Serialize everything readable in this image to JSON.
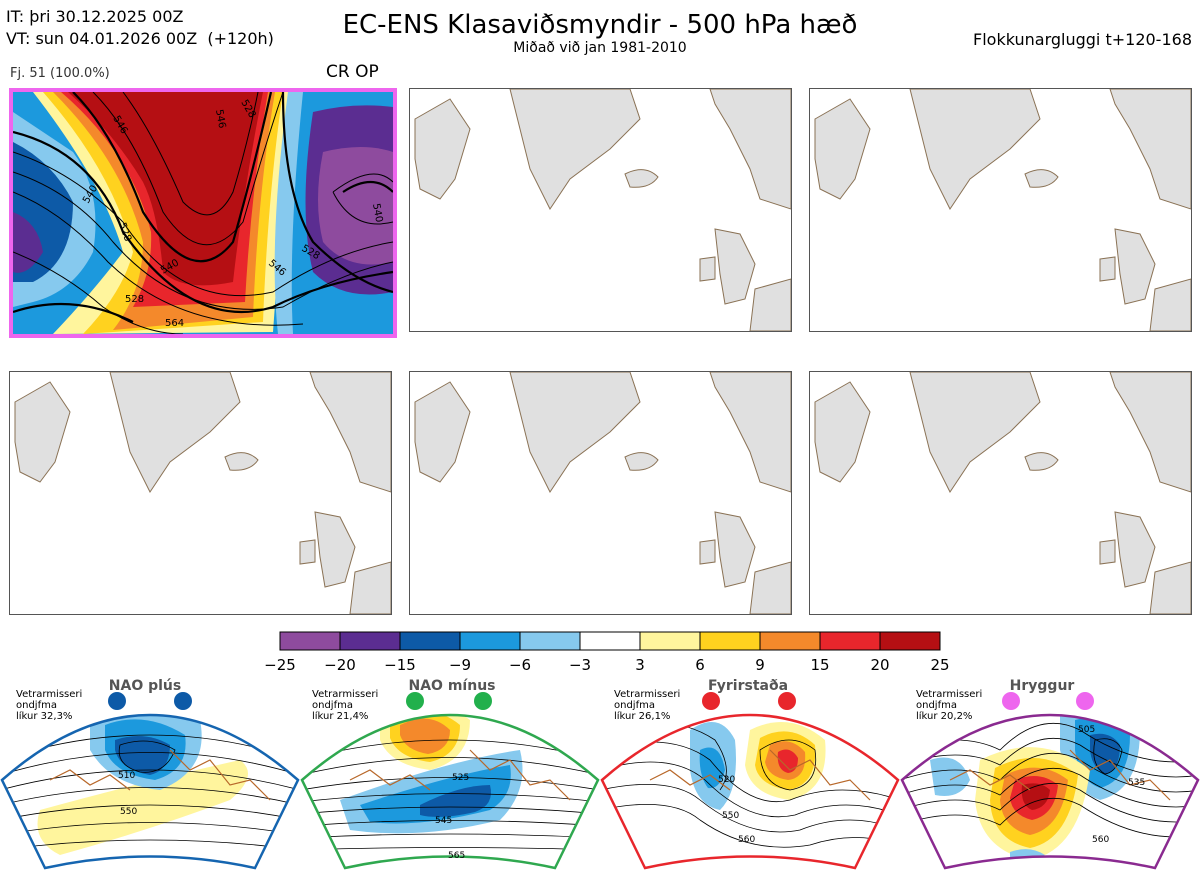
{
  "header": {
    "it_line": "IT: þri 30.12.2025 00Z",
    "vt_line": "VT: sun 04.01.2026 00Z  (+120h)",
    "title": "EC-ENS Klasaviðsmyndir - 500 hPa hæð",
    "subtitle": "Miðað við jan 1981-2010",
    "window": "Flokkunargluggi t+120-168"
  },
  "cluster": {
    "label": "Fj. 51 (100.0%)",
    "op_label": "CR OP"
  },
  "colors": {
    "cluster_border": "#ee66ee",
    "land": "#e0e0e0",
    "coast": "#8a7255",
    "regime_borders": [
      "#1565b0",
      "#2fa84f",
      "#e8262c",
      "#8a2a90"
    ],
    "regime_dots": [
      "#0d5aa7",
      "#22b04c",
      "#e8262c",
      "#ee66ee"
    ]
  },
  "chart_data": [
    {
      "type": "heatmap",
      "name": "500 hPa height anomaly colorbar",
      "units": "dam",
      "boundaries": [
        -25,
        -20,
        -15,
        -9,
        -6,
        -3,
        3,
        6,
        9,
        15,
        20,
        25
      ],
      "tick_labels": [
        "−25",
        "−20",
        "−15",
        "−9",
        "−6",
        "−3",
        "3",
        "6",
        "9",
        "15",
        "20",
        "25"
      ],
      "colors": [
        "#8e4b9e",
        "#5b2d91",
        "#0d5aa7",
        "#1c99dd",
        "#86c9ee",
        "#ffffff",
        "#fff59d",
        "#ffd21f",
        "#f4892b",
        "#e8262c",
        "#b50f13"
      ]
    },
    {
      "type": "heatmap",
      "name": "cluster 1 map",
      "contour_labels": [
        "546",
        "540",
        "528",
        "528",
        "540",
        "546",
        "528",
        "528",
        "546",
        "540",
        "564"
      ]
    },
    {
      "type": "heatmap",
      "name": "climatological regimes",
      "regimes": [
        {
          "name": "NAO plús",
          "note": "Vetrarmisseri\nondjfma\nlíkur 32,3%",
          "probability": 32.3,
          "contour_labels": [
            "510",
            "550"
          ]
        },
        {
          "name": "NAO mínus",
          "note": "Vetrarmisseri\nondjfma\nlíkur 21,4%",
          "probability": 21.4,
          "contour_labels": [
            "525",
            "545",
            "565"
          ]
        },
        {
          "name": "Fyrirstaða",
          "note": "Vetrarmisseri\nondjfma\nlíkur 26,1%",
          "probability": 26.1,
          "contour_labels": [
            "520",
            "550",
            "560"
          ]
        },
        {
          "name": "Hryggur",
          "note": "Vetrarmisseri\nondjfma\nlíkur 20,2%",
          "probability": 20.2,
          "contour_labels": [
            "505",
            "535",
            "560"
          ]
        }
      ]
    }
  ]
}
